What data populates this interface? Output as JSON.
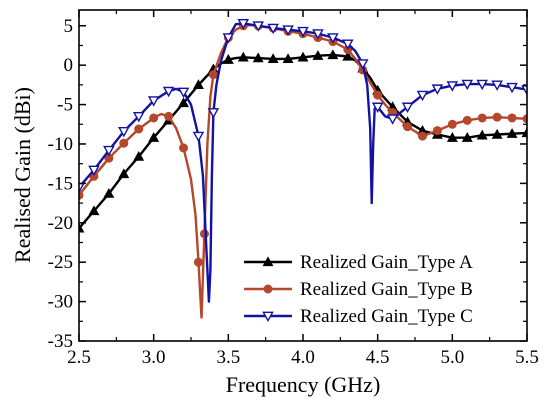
{
  "chart_data": {
    "type": "line",
    "xlabel": "Frequency (GHz)",
    "ylabel": "Realised Gain (dBi)",
    "xlim": [
      2.5,
      5.5
    ],
    "ylim": [
      -35,
      7
    ],
    "x_ticks": [
      "2.5",
      "3.0",
      "3.5",
      "4.0",
      "4.5",
      "5.0",
      "5.5"
    ],
    "y_ticks": [
      "5",
      "0",
      "-5",
      "-10",
      "-15",
      "-20",
      "-25",
      "-30",
      "-35"
    ],
    "legend_position": "bottom-right",
    "grid": false,
    "series": [
      {
        "name": "Realized Gain_Type A",
        "color": "#000000",
        "marker": "triangle-up-filled",
        "x": [
          2.5,
          2.6,
          2.7,
          2.8,
          2.9,
          3.0,
          3.1,
          3.2,
          3.3,
          3.35,
          3.4,
          3.45,
          3.5,
          3.55,
          3.6,
          3.7,
          3.8,
          3.9,
          4.0,
          4.1,
          4.2,
          4.3,
          4.35,
          4.4,
          4.45,
          4.5,
          4.6,
          4.7,
          4.8,
          4.9,
          5.0,
          5.1,
          5.2,
          5.3,
          5.4,
          5.5
        ],
        "y": [
          -20.7,
          -18.5,
          -16.3,
          -13.8,
          -11.6,
          -9.2,
          -7.0,
          -4.8,
          -2.5,
          -1.5,
          -0.5,
          0.2,
          0.7,
          0.9,
          1.0,
          0.9,
          0.8,
          0.8,
          1.0,
          1.2,
          1.3,
          1.1,
          0.6,
          -0.4,
          -1.6,
          -3.2,
          -5.3,
          -7.2,
          -8.3,
          -8.8,
          -9.2,
          -9.2,
          -8.9,
          -8.8,
          -8.7,
          -8.6
        ]
      },
      {
        "name": "Realized Gain_Type B",
        "color": "#b5472a",
        "marker": "circle-filled",
        "x": [
          2.5,
          2.6,
          2.7,
          2.8,
          2.9,
          3.0,
          3.05,
          3.1,
          3.15,
          3.2,
          3.25,
          3.28,
          3.3,
          3.32,
          3.34,
          3.36,
          3.38,
          3.4,
          3.45,
          3.5,
          3.55,
          3.6,
          3.65,
          3.7,
          3.8,
          3.9,
          4.0,
          4.1,
          4.2,
          4.3,
          4.35,
          4.4,
          4.45,
          4.5,
          4.55,
          4.6,
          4.7,
          4.8,
          4.9,
          5.0,
          5.1,
          5.2,
          5.3,
          5.4,
          5.5
        ],
        "y": [
          -16.5,
          -14.1,
          -11.8,
          -9.9,
          -8.1,
          -6.7,
          -6.2,
          -6.5,
          -8.0,
          -10.5,
          -14.5,
          -19.0,
          -25.0,
          -32.0,
          -21.4,
          -10.0,
          -4.0,
          -1.2,
          1.5,
          3.5,
          4.5,
          5.0,
          5.1,
          5.0,
          4.7,
          4.3,
          4.0,
          3.5,
          3.0,
          2.0,
          0.8,
          -0.6,
          -2.2,
          -3.8,
          -5.0,
          -6.0,
          -7.8,
          -9.0,
          -8.3,
          -7.5,
          -7.0,
          -6.7,
          -6.6,
          -6.7,
          -6.8
        ]
      },
      {
        "name": "Realized Gain_Type C",
        "color": "#1212a4",
        "marker": "triangle-down-open",
        "x": [
          2.5,
          2.6,
          2.7,
          2.8,
          2.9,
          3.0,
          3.1,
          3.15,
          3.2,
          3.25,
          3.3,
          3.33,
          3.35,
          3.37,
          3.38,
          3.39,
          3.4,
          3.42,
          3.45,
          3.5,
          3.55,
          3.6,
          3.7,
          3.8,
          3.9,
          4.0,
          4.1,
          4.2,
          4.3,
          4.35,
          4.4,
          4.43,
          4.45,
          4.46,
          4.47,
          4.48,
          4.5,
          4.55,
          4.6,
          4.7,
          4.8,
          4.9,
          5.0,
          5.1,
          5.2,
          5.3,
          5.4,
          5.5
        ],
        "y": [
          -15.5,
          -13.3,
          -10.8,
          -8.4,
          -6.5,
          -4.5,
          -3.3,
          -3.0,
          -3.4,
          -5.0,
          -9.0,
          -14.0,
          -22.0,
          -30.0,
          -26.0,
          -14.0,
          -6.0,
          -2.5,
          0.5,
          3.5,
          5.2,
          5.3,
          5.0,
          4.7,
          4.5,
          4.3,
          4.0,
          3.5,
          2.7,
          1.8,
          0.2,
          -2.5,
          -8.0,
          -17.5,
          -10.0,
          -5.5,
          -5.3,
          -6.5,
          -6.8,
          -5.3,
          -3.8,
          -3.0,
          -2.6,
          -2.4,
          -2.4,
          -2.5,
          -2.8,
          -3.1
        ]
      }
    ]
  }
}
